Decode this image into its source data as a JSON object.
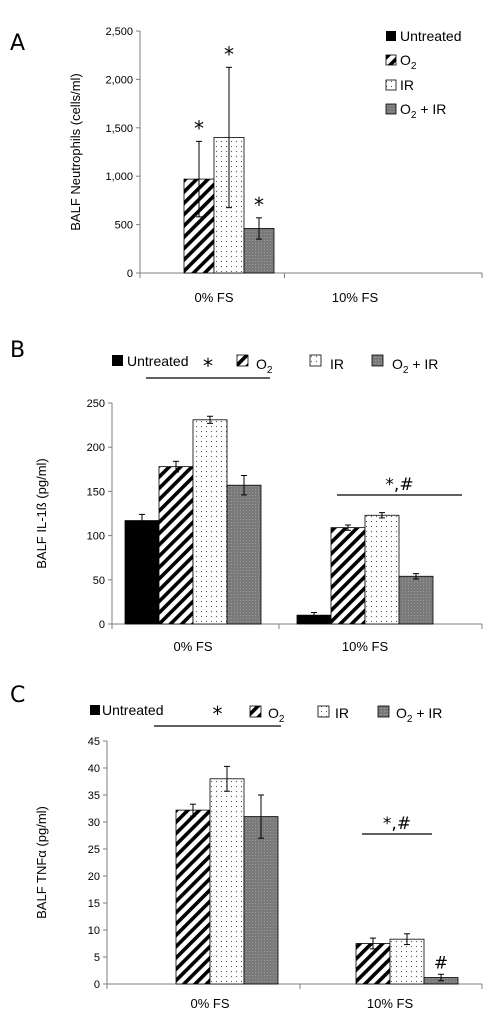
{
  "colors": {
    "untreated": "#000000",
    "o2": "#ffffff",
    "ir": "#ffffff",
    "o2ir": "#7f7f7f",
    "axis": "#7f7f7f"
  },
  "chart_data": [
    {
      "panel": "A",
      "type": "bar",
      "categories": [
        "0% FS",
        "10% FS"
      ],
      "ylabel": "BALF Neutrophils (cells/ml)",
      "ylim": [
        0,
        2500
      ],
      "yticks": [
        "0",
        "500",
        "1,000",
        "1,500",
        "2,000",
        "2,500"
      ],
      "legend_position": "top-right",
      "series": [
        {
          "name": "Untreated",
          "values": [
            0,
            0
          ],
          "errors": [
            0,
            0
          ]
        },
        {
          "name": "O2",
          "values": [
            970,
            0
          ],
          "errors": [
            390,
            0
          ]
        },
        {
          "name": "IR",
          "values": [
            1400,
            0
          ],
          "errors": [
            725,
            0
          ]
        },
        {
          "name": "O2 + IR",
          "values": [
            460,
            0
          ],
          "errors": [
            110,
            0
          ]
        }
      ],
      "annotations": [
        {
          "text": "*",
          "category": "0% FS",
          "series": "O2"
        },
        {
          "text": "*",
          "category": "0% FS",
          "series": "IR"
        },
        {
          "text": "*",
          "category": "0% FS",
          "series": "O2 + IR"
        }
      ]
    },
    {
      "panel": "B",
      "type": "bar",
      "categories": [
        "0% FS",
        "10% FS"
      ],
      "ylabel": "BALF IL-1ß (pg/ml)",
      "ylim": [
        0,
        250
      ],
      "yticks": [
        "0",
        "50",
        "100",
        "150",
        "200",
        "250"
      ],
      "legend_position": "top",
      "series": [
        {
          "name": "Untreated",
          "values": [
            117,
            10
          ],
          "errors": [
            7,
            3
          ]
        },
        {
          "name": "O2",
          "values": [
            178,
            109
          ],
          "errors": [
            6,
            3
          ]
        },
        {
          "name": "IR",
          "values": [
            231,
            123
          ],
          "errors": [
            4,
            3
          ]
        },
        {
          "name": "O2 + IR",
          "values": [
            157,
            54
          ],
          "errors": [
            11,
            3
          ]
        }
      ],
      "annotations": [
        {
          "text": "*",
          "category": "0% FS",
          "bracket": true
        },
        {
          "text": "*,#",
          "category": "10% FS",
          "bracket": true
        }
      ]
    },
    {
      "panel": "C",
      "type": "bar",
      "categories": [
        "0% FS",
        "10% FS"
      ],
      "ylabel": "BALF TNFα (pg/ml)",
      "ylim": [
        0,
        45
      ],
      "yticks": [
        "0",
        "5",
        "10",
        "15",
        "20",
        "25",
        "30",
        "35",
        "40",
        "45"
      ],
      "legend_position": "top",
      "series": [
        {
          "name": "Untreated",
          "values": [
            0,
            0
          ],
          "errors": [
            0,
            0
          ]
        },
        {
          "name": "O2",
          "values": [
            32.2,
            7.5
          ],
          "errors": [
            1.1,
            1.0
          ]
        },
        {
          "name": "IR",
          "values": [
            38.0,
            8.3
          ],
          "errors": [
            2.3,
            1.0
          ]
        },
        {
          "name": "O2 + IR",
          "values": [
            31.0,
            1.2
          ],
          "errors": [
            4.0,
            0.6
          ]
        }
      ],
      "annotations": [
        {
          "text": "*",
          "category": "0% FS",
          "bracket": true
        },
        {
          "text": "*,#",
          "category": "10% FS",
          "bracket": true
        },
        {
          "text": "#",
          "category": "10% FS",
          "series": "O2 + IR"
        }
      ]
    }
  ],
  "legend": {
    "untreated": "Untreated",
    "o2_main": "O",
    "o2_sub": "2",
    "ir": "IR",
    "o2ir_main": "O",
    "o2ir_sub": "2",
    "o2ir_tail": " + IR"
  },
  "panels": {
    "a_letter": "A",
    "b_letter": "B",
    "c_letter": "C"
  }
}
